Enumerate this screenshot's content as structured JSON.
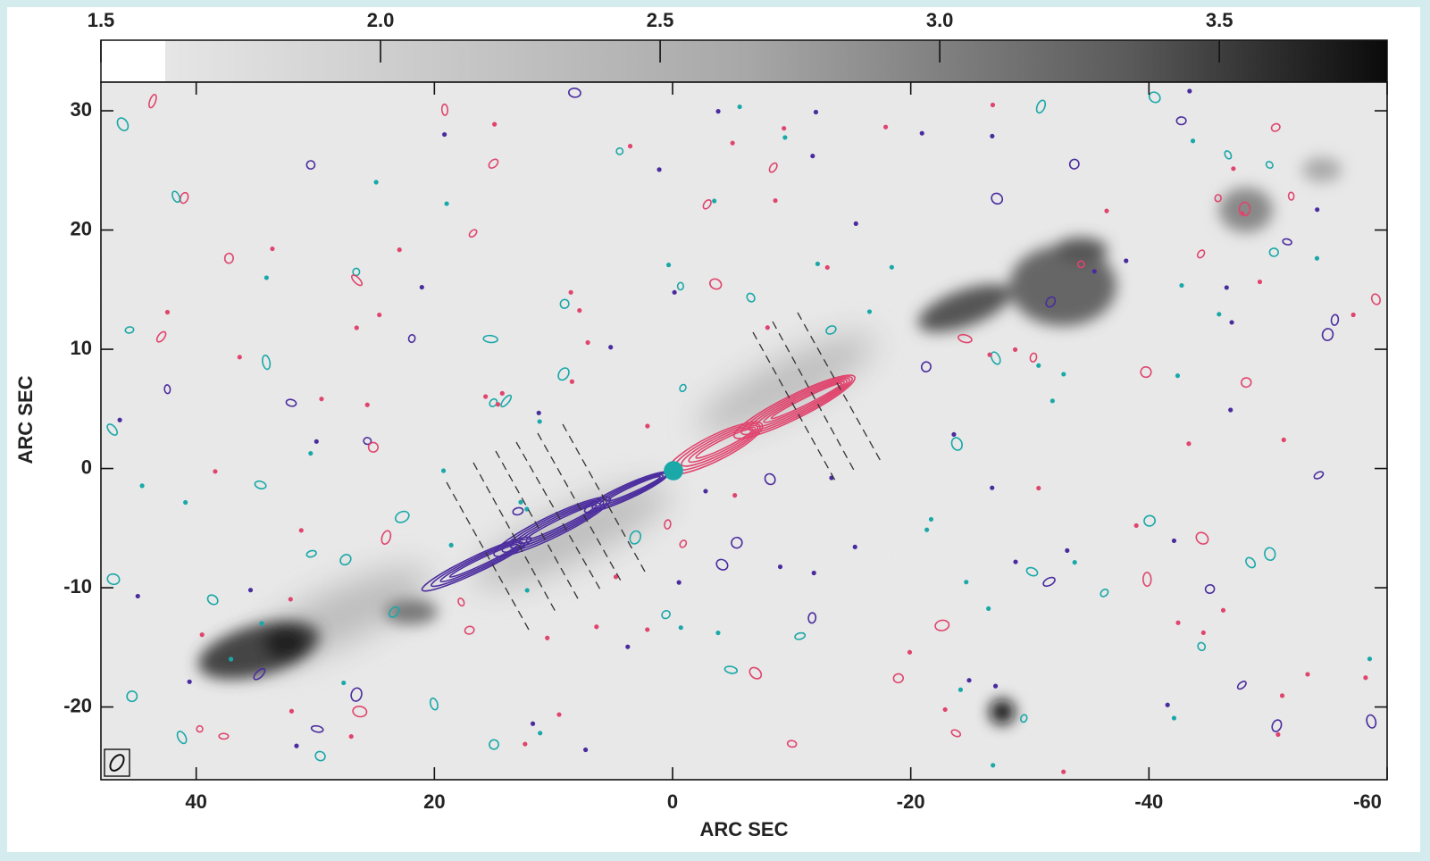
{
  "chart_data": {
    "type": "image",
    "xlabel": "ARC SEC",
    "ylabel": "ARC SEC",
    "xlim": [
      48,
      -60
    ],
    "xticks": [
      40,
      20,
      0,
      -20,
      -40,
      -60
    ],
    "ylim": [
      -26.1,
      32.4
    ],
    "yticks": [
      30,
      20,
      10,
      0,
      -10,
      -20
    ],
    "colorbar": {
      "lim": [
        1.5,
        3.8
      ],
      "ticks": [
        1.5,
        {
          "value": 2,
          "label": "2.0"
        },
        2.5,
        {
          "value": 3,
          "label": "3.0"
        },
        3.5
      ]
    }
  }
}
